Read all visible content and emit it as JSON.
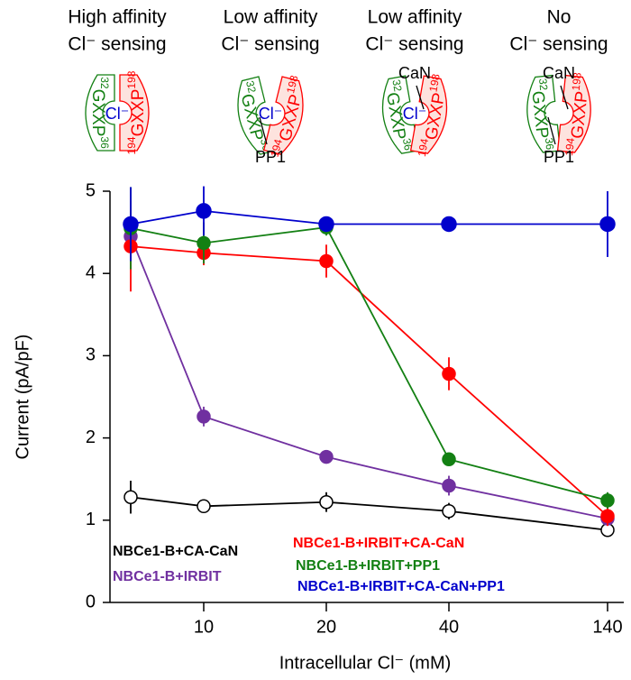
{
  "chart_data": {
    "type": "line",
    "diagrams": [
      {
        "title": [
          "High affinity",
          "Cl⁻ sensing"
        ],
        "green_motif": [
          "32",
          "GXXP",
          "36"
        ],
        "red_motif": [
          "194",
          "GXXP",
          "198"
        ],
        "cl": "Cl⁻"
      },
      {
        "title": [
          "Low affinity",
          "Cl⁻ sensing"
        ],
        "green_motif": [
          "32",
          "GXXP",
          "36"
        ],
        "red_motif": [
          "194",
          "GXXP",
          "198"
        ],
        "cl": "Cl⁻",
        "pp1": "PP1"
      },
      {
        "title": [
          "Low affinity",
          "Cl⁻ sensing"
        ],
        "green_motif": [
          "32",
          "GXXP",
          "36"
        ],
        "red_motif": [
          "194",
          "GXXP",
          "198"
        ],
        "cl": "Cl⁻",
        "can": "CaN"
      },
      {
        "title": [
          "No",
          "Cl⁻ sensing"
        ],
        "green_motif": [
          "32",
          "GXXP",
          "36"
        ],
        "red_motif": [
          "194",
          "GXXP",
          "198"
        ],
        "pp1": "PP1",
        "can": "CaN"
      }
    ],
    "x_label": "Intracellular Cl⁻ (mM)",
    "y_label": "Current (pA/pF)",
    "categories": [
      null,
      "10",
      "20",
      "40",
      "140"
    ],
    "ylim": [
      0,
      5
    ],
    "yticks": [
      0,
      1,
      2,
      3,
      4,
      5
    ],
    "series": [
      {
        "name": "NBCe1-B+CA-CaN",
        "color": "#000000",
        "open": true,
        "values": [
          1.28,
          1.17,
          1.22,
          1.11,
          0.88
        ],
        "errors": [
          0.2,
          0.08,
          0.12,
          0.1,
          0.05
        ]
      },
      {
        "name": "NBCe1-B+IRBIT",
        "color": "#7030a0",
        "values": [
          4.45,
          2.26,
          1.77,
          1.42,
          1.02
        ],
        "errors": [
          0.08,
          0.12,
          0.05,
          0.12,
          0.06
        ]
      },
      {
        "name": "NBCe1-B+IRBIT+CA-CaN",
        "color": "#ff0000",
        "values": [
          4.33,
          4.25,
          4.15,
          2.78,
          1.05
        ],
        "errors": [
          0.55,
          0.15,
          0.2,
          0.2,
          0.12
        ]
      },
      {
        "name": "NBCe1-B+IRBIT+PP1",
        "color": "#138013",
        "values": [
          4.55,
          4.37,
          4.56,
          1.74,
          1.24
        ],
        "errors": [
          0.5,
          0.25,
          0.1,
          0.05,
          0.1
        ]
      },
      {
        "name": "NBCe1-B+IRBIT+CA-CaN+PP1",
        "color": "#0000cc",
        "values": [
          4.6,
          4.76,
          4.6,
          4.6,
          4.6
        ],
        "errors": [
          0.45,
          0.3,
          0.05,
          0.05,
          0.4
        ]
      }
    ]
  }
}
